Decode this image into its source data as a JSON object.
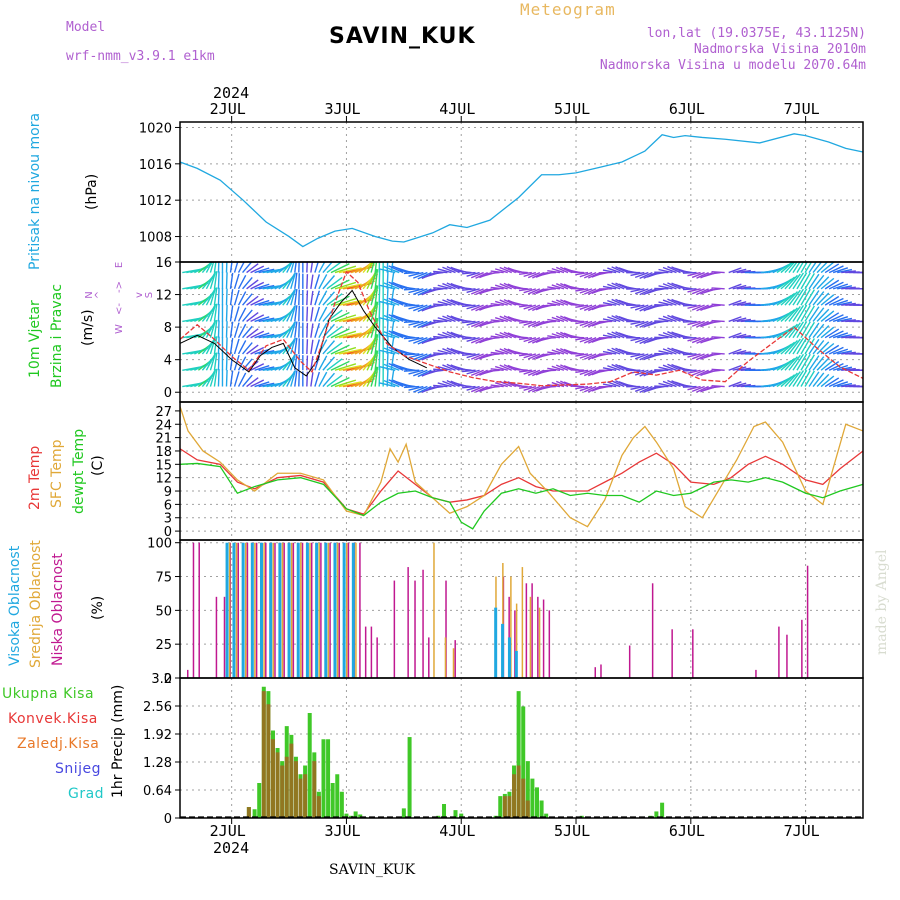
{
  "header": {
    "model_label": "Model",
    "model_value": "wrf-nmm_v3.9.1  e1km",
    "station": "SAVIN_KUK",
    "meteogram": "Meteogram",
    "lonlat": "lon,lat (19.0375E, 43.1125N)",
    "altitude": "Nadmorska Visina 2010m",
    "model_altitude": "Nadmorska Visina u modelu 2070.64m",
    "year_top": "2024",
    "year_bottom": "2024",
    "footer": "SAVIN_KUK",
    "made_by": "made by Angel"
  },
  "colors": {
    "pressure": "#20a8e0",
    "t2m": "#e83838",
    "tsfc": "#e0a838",
    "dewpt": "#20c820",
    "cloud_high": "#20a8e0",
    "cloud_mid": "#e0a838",
    "cloud_low": "#c01890",
    "precip_total": "#40c828",
    "precip_conv": "#e83838",
    "precip_frozen": "#e87828",
    "snow": "#4848e0",
    "graupel": "#20c8c8",
    "wind_speed": "#e83838",
    "wind_gust": "#000000",
    "grid": "#a0a0a0"
  },
  "labels": {
    "pressure": [
      "Pritisak na nivou mora",
      "(hPa)"
    ],
    "wind": [
      "10m Vjetar",
      "Brzina i Pravac",
      "(m/s)"
    ],
    "compass": [
      "N",
      "^",
      "W",
      "<-",
      "->",
      "E",
      "v",
      "S"
    ],
    "temp": [
      "2m Temp",
      "SFC Temp",
      "dewpt Temp",
      "(C)"
    ],
    "cloud": [
      "Visoka Oblacnost",
      "Srednja Oblacnost",
      "Niska Oblacnost",
      "(%)"
    ],
    "precip_legend": [
      "Ukupna Kisa",
      "Konvek.Kisa",
      "Zaledj.Kisa",
      "Snijeg",
      "Grad"
    ],
    "precip_axis": "1hr Precip (mm)"
  },
  "chart_data": [
    {
      "type": "line",
      "name": "pressure",
      "xlabel": "",
      "ylabel": "(hPa)",
      "x_ticks": [
        "2JUL",
        "3JUL",
        "4JUL",
        "5JUL",
        "6JUL",
        "7JUL"
      ],
      "x_range_days": [
        1.55,
        7.5
      ],
      "y_ticks": [
        1008,
        1012,
        1016,
        1020
      ],
      "ylim": [
        1005.2,
        1020.6
      ],
      "series": [
        {
          "x": [
            1.55,
            1.7,
            1.9,
            2.1,
            2.3,
            2.5,
            2.62,
            2.75,
            2.9,
            3.05,
            3.25,
            3.4,
            3.5,
            3.6,
            3.75,
            3.9,
            4.05,
            4.25,
            4.5,
            4.7,
            4.85,
            5.0,
            5.2,
            5.4,
            5.6,
            5.75,
            5.85,
            5.95,
            6.1,
            6.3,
            6.6,
            6.9,
            7.0,
            7.2,
            7.35,
            7.5
          ],
          "values": [
            1016.2,
            1015.5,
            1014.2,
            1012.0,
            1009.6,
            1008.0,
            1006.9,
            1007.8,
            1008.6,
            1008.9,
            1008.0,
            1007.5,
            1007.4,
            1007.8,
            1008.4,
            1009.3,
            1009.0,
            1009.8,
            1012.3,
            1014.8,
            1014.8,
            1015.0,
            1015.6,
            1016.2,
            1017.4,
            1019.2,
            1018.9,
            1019.1,
            1018.9,
            1018.7,
            1018.3,
            1019.3,
            1019.1,
            1018.4,
            1017.7,
            1017.3
          ]
        }
      ]
    },
    {
      "type": "line",
      "name": "wind",
      "ylabel": "(m/s)",
      "y_ticks": [
        0,
        4,
        8,
        12,
        16
      ],
      "ylim": [
        -1.2,
        16
      ],
      "series": [
        {
          "name": "speed",
          "x": [
            1.55,
            1.7,
            1.85,
            2.0,
            2.15,
            2.3,
            2.45,
            2.6,
            2.7,
            2.8,
            2.9,
            3.0,
            3.1,
            3.2,
            3.35,
            3.5,
            3.7,
            3.9,
            4.1,
            4.3,
            4.5,
            4.7,
            4.9,
            5.1,
            5.3,
            5.5,
            5.7,
            5.9,
            6.1,
            6.3,
            6.5,
            6.7,
            6.9,
            7.1,
            7.3,
            7.5
          ],
          "values": [
            6.5,
            8.3,
            6.5,
            4.4,
            2.7,
            5.7,
            6.5,
            3.8,
            2.5,
            6.5,
            11.0,
            14.8,
            13.5,
            10.0,
            6.0,
            4.5,
            3.5,
            2.5,
            1.8,
            1.3,
            1.1,
            0.8,
            0.9,
            1.0,
            1.3,
            2.5,
            2.1,
            2.7,
            1.5,
            1.3,
            3.8,
            5.9,
            8.0,
            5.4,
            3.1,
            1.7
          ]
        },
        {
          "name": "gust",
          "x": [
            1.55,
            1.7,
            1.85,
            2.0,
            2.15,
            2.25,
            2.35,
            2.45,
            2.55,
            2.65,
            2.75,
            2.85,
            2.95,
            3.05,
            3.15,
            3.25,
            3.4,
            3.55,
            3.7
          ],
          "values": [
            6.0,
            7.0,
            6.0,
            4.0,
            2.5,
            4.5,
            5.5,
            6.0,
            3.0,
            2.0,
            4.0,
            9.0,
            11.0,
            12.5,
            10.0,
            8.0,
            5.5,
            4.0,
            3.0
          ]
        }
      ]
    },
    {
      "type": "line",
      "name": "temperature",
      "ylabel": "(C)",
      "y_ticks": [
        0,
        3,
        6,
        9,
        12,
        15,
        18,
        21,
        24,
        27
      ],
      "ylim": [
        -2.0,
        29.0
      ],
      "series": [
        {
          "name": "t2m",
          "x": [
            1.55,
            1.7,
            1.9,
            2.05,
            2.2,
            2.4,
            2.6,
            2.8,
            3.0,
            3.15,
            3.3,
            3.45,
            3.6,
            3.75,
            3.9,
            4.05,
            4.2,
            4.35,
            4.5,
            4.65,
            4.8,
            4.95,
            5.1,
            5.25,
            5.4,
            5.55,
            5.7,
            5.85,
            6.0,
            6.2,
            6.35,
            6.5,
            6.65,
            6.8,
            7.0,
            7.15,
            7.3,
            7.5
          ],
          "values": [
            18.5,
            16.0,
            15.0,
            11.0,
            9.5,
            12.0,
            12.5,
            11.0,
            5.0,
            3.8,
            9.0,
            13.5,
            10.5,
            7.5,
            6.5,
            7.0,
            8.0,
            10.5,
            12.0,
            10.0,
            9.0,
            9.0,
            9.0,
            11.0,
            13.0,
            15.5,
            17.5,
            15.0,
            11.0,
            10.5,
            12.0,
            15.0,
            16.8,
            15.0,
            11.5,
            10.5,
            14.0,
            18.0
          ]
        },
        {
          "name": "tsfc",
          "x": [
            1.55,
            1.62,
            1.75,
            1.9,
            2.05,
            2.2,
            2.4,
            2.6,
            2.8,
            3.0,
            3.15,
            3.3,
            3.38,
            3.45,
            3.52,
            3.6,
            3.75,
            3.9,
            4.05,
            4.2,
            4.35,
            4.5,
            4.6,
            4.75,
            4.95,
            5.1,
            5.25,
            5.4,
            5.5,
            5.6,
            5.7,
            5.85,
            5.95,
            6.1,
            6.25,
            6.4,
            6.55,
            6.65,
            6.8,
            7.0,
            7.15,
            7.25,
            7.35,
            7.5
          ],
          "values": [
            28.0,
            22.5,
            18.0,
            15.5,
            11.5,
            9.0,
            13.0,
            13.0,
            11.5,
            4.5,
            3.5,
            11.0,
            18.5,
            15.5,
            19.5,
            11.0,
            7.5,
            4.0,
            5.5,
            8.0,
            15.0,
            19.0,
            13.0,
            9.0,
            3.0,
            1.0,
            7.0,
            17.0,
            21.0,
            23.5,
            20.0,
            14.0,
            5.5,
            3.0,
            9.5,
            16.0,
            23.5,
            24.5,
            20.0,
            9.0,
            6.0,
            15.0,
            24.0,
            22.5
          ]
        },
        {
          "name": "dewpt",
          "x": [
            1.55,
            1.7,
            1.9,
            2.05,
            2.2,
            2.4,
            2.6,
            2.8,
            3.0,
            3.15,
            3.3,
            3.45,
            3.6,
            3.75,
            3.9,
            4.0,
            4.1,
            4.2,
            4.35,
            4.5,
            4.65,
            4.8,
            4.95,
            5.1,
            5.25,
            5.4,
            5.55,
            5.7,
            5.85,
            6.0,
            6.2,
            6.35,
            6.5,
            6.65,
            6.8,
            7.0,
            7.15,
            7.3,
            7.5
          ],
          "values": [
            15.0,
            15.2,
            14.5,
            8.5,
            10.0,
            11.5,
            12.0,
            10.5,
            5.0,
            3.5,
            6.5,
            8.5,
            9.0,
            7.5,
            6.5,
            2.0,
            0.5,
            4.5,
            8.5,
            9.5,
            8.5,
            9.5,
            8.0,
            8.5,
            8.0,
            8.0,
            6.5,
            9.0,
            8.0,
            8.5,
            11.0,
            11.5,
            11.0,
            12.0,
            11.0,
            8.5,
            7.5,
            9.0,
            10.5
          ]
        }
      ]
    },
    {
      "type": "bar",
      "name": "cloudiness",
      "ylabel": "(%)",
      "y_ticks": [
        0,
        25,
        50,
        75,
        100
      ],
      "ylim": [
        0,
        102
      ],
      "series": [
        {
          "name": "low",
          "x": [
            1.6,
            1.65,
            1.7,
            1.85,
            1.92,
            1.97,
            2.04,
            2.08,
            2.12,
            2.16,
            2.2,
            2.24,
            2.28,
            2.32,
            2.36,
            2.4,
            2.44,
            2.48,
            2.52,
            2.56,
            2.6,
            2.64,
            2.68,
            2.72,
            2.76,
            2.8,
            2.84,
            2.88,
            2.92,
            2.96,
            3.0,
            3.05,
            3.1,
            3.15,
            3.2,
            3.25,
            3.4,
            3.52,
            3.58,
            3.65,
            3.7,
            3.85,
            3.93,
            4.35,
            4.4,
            4.45,
            4.55,
            4.6,
            4.65,
            4.7,
            4.75,
            5.15,
            5.2,
            5.45,
            5.65,
            5.82,
            6.0,
            6.55,
            6.75,
            6.82,
            6.95,
            7.0
          ],
          "values": [
            6,
            100,
            100,
            60,
            60,
            100,
            100,
            100,
            100,
            100,
            100,
            100,
            100,
            100,
            100,
            100,
            100,
            100,
            100,
            100,
            100,
            100,
            100,
            100,
            100,
            100,
            100,
            100,
            100,
            100,
            100,
            100,
            100,
            38,
            38,
            30,
            72,
            82,
            72,
            80,
            30,
            72,
            28,
            75,
            60,
            50,
            70,
            70,
            60,
            58,
            50,
            8,
            10,
            24,
            70,
            36,
            36,
            6,
            38,
            32,
            43,
            83
          ]
        },
        {
          "name": "mid",
          "x": [
            2.0,
            2.06,
            2.14,
            2.22,
            2.3,
            2.38,
            2.46,
            2.54,
            2.62,
            2.7,
            2.78,
            2.86,
            2.94,
            3.02,
            3.1,
            3.78,
            3.88,
            3.95,
            4.32,
            4.38,
            4.45,
            4.5,
            4.55,
            4.62,
            4.7
          ],
          "values": [
            100,
            100,
            100,
            100,
            100,
            100,
            100,
            100,
            100,
            100,
            100,
            100,
            100,
            100,
            100,
            100,
            30,
            22,
            75,
            85,
            75,
            55,
            82,
            60,
            52
          ]
        },
        {
          "name": "high",
          "x": [
            1.96,
            2.02,
            2.1,
            2.18,
            2.26,
            2.34,
            2.42,
            2.5,
            2.58,
            2.66,
            2.74,
            2.82,
            2.9,
            2.98,
            3.06,
            4.3,
            4.36,
            4.42,
            4.48
          ],
          "values": [
            100,
            100,
            100,
            100,
            100,
            100,
            100,
            100,
            100,
            100,
            100,
            100,
            100,
            100,
            100,
            52,
            40,
            30,
            20
          ]
        }
      ]
    },
    {
      "type": "bar",
      "name": "precipitation",
      "ylabel": "1hr Precip (mm)",
      "y_ticks": [
        0,
        0.64,
        1.28,
        1.92,
        2.56,
        3.2
      ],
      "ylim": [
        0,
        3.2
      ],
      "series": [
        {
          "name": "total",
          "x": [
            2.15,
            2.2,
            2.24,
            2.28,
            2.32,
            2.36,
            2.4,
            2.44,
            2.48,
            2.52,
            2.56,
            2.6,
            2.64,
            2.68,
            2.72,
            2.76,
            2.8,
            2.84,
            2.88,
            2.92,
            2.96,
            3.0,
            3.04,
            3.08,
            3.12,
            3.16,
            3.5,
            3.55,
            3.8,
            3.85,
            3.95,
            4.0,
            4.3,
            4.34,
            4.38,
            4.42,
            4.46,
            4.5,
            4.54,
            4.58,
            4.62,
            4.66,
            4.7,
            4.74,
            5.05,
            5.65,
            5.7,
            5.75
          ],
          "values": [
            0.25,
            0.2,
            0.8,
            3.0,
            2.9,
            2.0,
            1.6,
            1.3,
            2.1,
            1.9,
            1.4,
            1.0,
            1.2,
            2.4,
            1.5,
            0.6,
            1.8,
            1.8,
            0.8,
            1.0,
            0.6,
            0.1,
            0.05,
            0.15,
            0.08,
            0.02,
            0.22,
            1.85,
            0.05,
            0.32,
            0.18,
            0.1,
            0.05,
            0.5,
            0.55,
            0.6,
            1.2,
            2.9,
            2.55,
            1.3,
            0.9,
            0.7,
            0.4,
            0.1,
            0.05,
            0.05,
            0.15,
            0.35
          ]
        },
        {
          "name": "convective",
          "x": [
            2.15,
            2.28,
            2.32,
            2.36,
            2.4,
            2.44,
            2.48,
            2.52,
            2.56,
            2.6,
            2.64,
            2.72,
            2.76,
            4.38,
            4.42,
            4.46,
            4.5,
            4.54,
            4.58
          ],
          "values": [
            0.25,
            2.9,
            2.6,
            1.8,
            1.5,
            1.2,
            1.4,
            1.7,
            1.3,
            0.9,
            1.0,
            1.3,
            0.5,
            0.5,
            0.5,
            1.0,
            1.2,
            0.9,
            0.4
          ]
        }
      ]
    }
  ]
}
